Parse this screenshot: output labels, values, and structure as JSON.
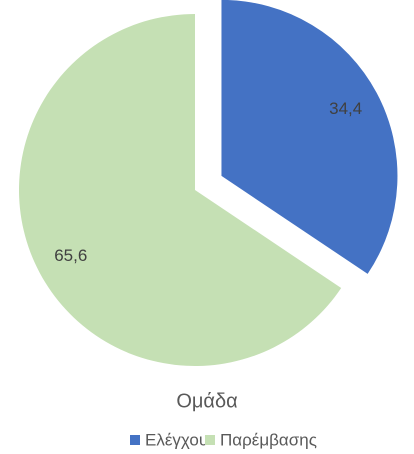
{
  "chart_data": {
    "type": "pie",
    "legend_title": "Ομάδα",
    "categories": [
      "Ελέγχου",
      "Παρέμβασης"
    ],
    "values": [
      34.4,
      65.6
    ],
    "value_labels": [
      "34,4",
      "65,6"
    ],
    "colors": [
      "#4472c4",
      "#c5e0b4"
    ],
    "exploded": [
      true,
      false
    ],
    "legend": "bottom"
  }
}
